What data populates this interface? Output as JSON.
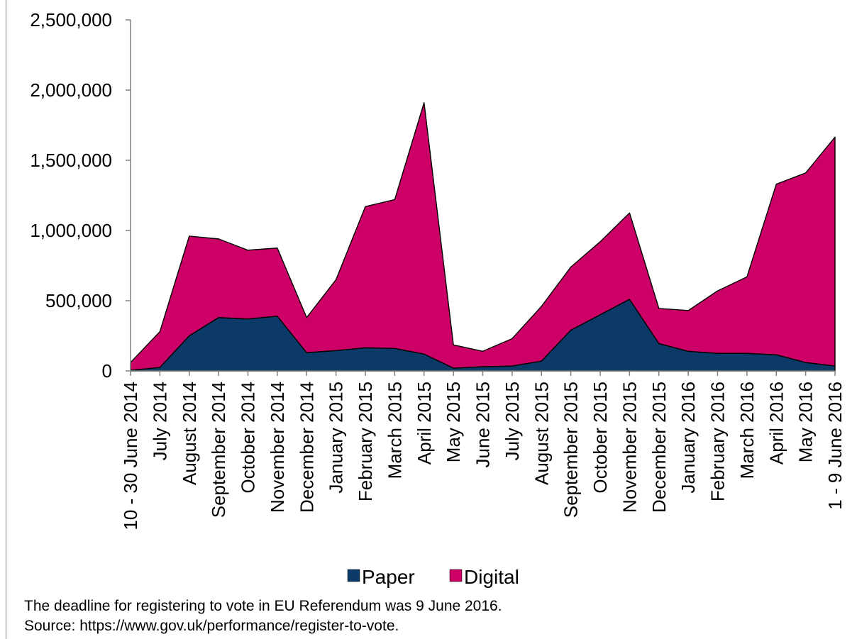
{
  "chart_data": {
    "type": "area",
    "stacked": true,
    "categories": [
      "10 - 30 June 2014",
      "July 2014",
      "August 2014",
      "September 2014",
      "October 2014",
      "November 2014",
      "December 2014",
      "January 2015",
      "February 2015",
      "March 2015",
      "April 2015",
      "May 2015",
      "June 2015",
      "July 2015",
      "August 2015",
      "September 2015",
      "October 2015",
      "November 2015",
      "December 2015",
      "January 2016",
      "February 2016",
      "March 2016",
      "April 2016",
      "May 2016",
      "1 - 9 June 2016"
    ],
    "series": [
      {
        "name": "Paper",
        "color": "#0c3a68",
        "values": [
          5000,
          25000,
          250000,
          380000,
          370000,
          390000,
          130000,
          145000,
          165000,
          160000,
          120000,
          20000,
          30000,
          35000,
          70000,
          290000,
          400000,
          510000,
          195000,
          140000,
          125000,
          125000,
          115000,
          60000,
          35000
        ]
      },
      {
        "name": "Digital",
        "color": "#cc0066",
        "values": [
          55000,
          255000,
          710000,
          560000,
          490000,
          485000,
          250000,
          505000,
          1005000,
          1060000,
          1790000,
          165000,
          110000,
          195000,
          390000,
          450000,
          520000,
          615000,
          250000,
          290000,
          445000,
          545000,
          1215000,
          1350000,
          1630000
        ]
      }
    ],
    "ylim": [
      0,
      2500000
    ],
    "yticks": [
      "0",
      "500,000",
      "1,000,000",
      "1,500,000",
      "2,000,000",
      "2,500,000"
    ],
    "ytick_values": [
      0,
      500000,
      1000000,
      1500000,
      2000000,
      2500000
    ],
    "xlabel": "",
    "ylabel": "",
    "grid": false,
    "legend_position": "bottom"
  },
  "captions": {
    "line1": "The deadline for registering to vote in EU Referendum was 9 June 2016.",
    "line2": "Source: https://www.gov.uk/performance/register-to-vote."
  }
}
